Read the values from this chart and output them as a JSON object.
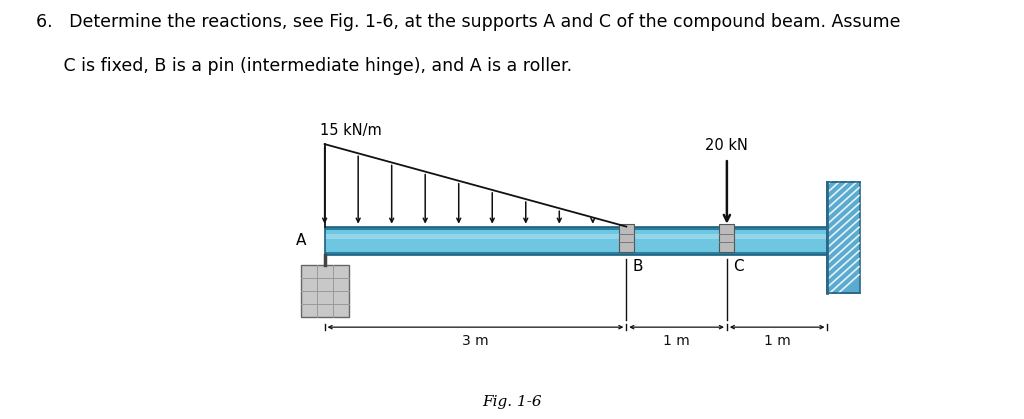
{
  "title_line1": "6.   Determine the reactions, see Fig. 1-6, at the supports A and C of the compound beam. Assume",
  "title_line2": "     C is fixed, B is a pin (intermediate hinge), and A is a roller.",
  "fig_caption": "Fig. 1-6",
  "beam_color": "#6ec6e0",
  "beam_highlight": "#a8dff0",
  "beam_dark": "#2a7fa0",
  "beam_edge": "#1a6080",
  "wall_color": "#5aabcf",
  "wall_dark": "#2a6888",
  "load_color": "#111111",
  "dim_color": "#111111",
  "support_color": "#aaaaaa",
  "block_color": "#c8c8c8",
  "block_line": "#888888",
  "bg_color": "#ffffff",
  "label_fontsize": 10.5,
  "caption_fontsize": 11,
  "title_fontsize": 12.5
}
